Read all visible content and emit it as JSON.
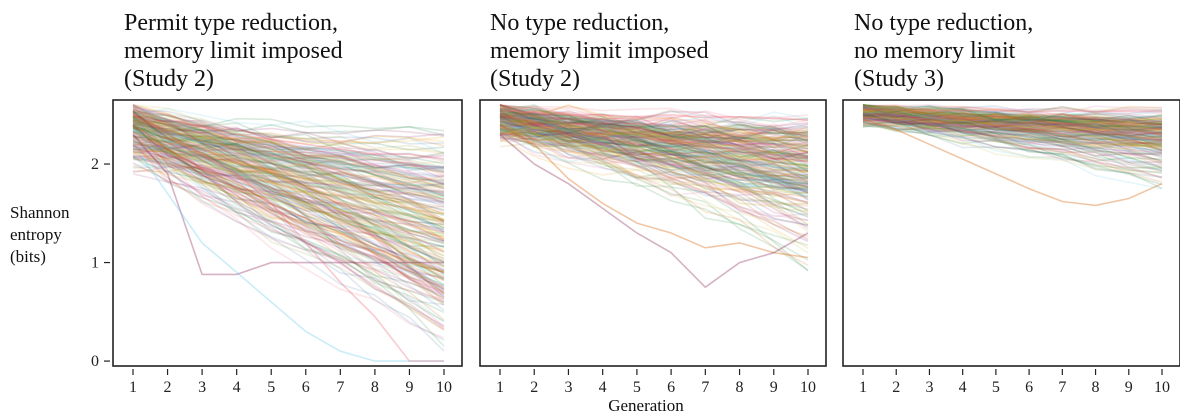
{
  "chart_data": {
    "type": "line",
    "xlabel": "Generation",
    "ylabel_lines": [
      "Shannon",
      "entropy",
      "(bits)"
    ],
    "x_ticks": [
      1,
      2,
      3,
      4,
      5,
      6,
      7,
      8,
      9,
      10
    ],
    "y_ticks": [
      0,
      1,
      2
    ],
    "xlim": [
      0.6,
      10.4
    ],
    "ylim": [
      -0.05,
      2.65
    ],
    "grid": false,
    "legend": "none",
    "palette": [
      "#4477aa",
      "#66ccee",
      "#228833",
      "#ccbb44",
      "#ee6677",
      "#aa3377",
      "#e69f00",
      "#d55e00",
      "#cc79a7",
      "#999933",
      "#882255",
      "#117733"
    ],
    "line_opacity": 0.16,
    "panels": [
      {
        "title_lines": [
          "Permit type reduction,",
          "memory limit imposed",
          "(Study 2)"
        ],
        "start_range": [
          1.9,
          2.58
        ],
        "end_range": [
          0.0,
          2.35
        ],
        "typical_end": 1.25,
        "series_count": 240,
        "example_series": [
          {
            "x": [
              1,
              2,
              3,
              4,
              5,
              6,
              7,
              8,
              9,
              10
            ],
            "y": [
              2.55,
              2.45,
              2.38,
              2.3,
              2.25,
              2.2,
              2.15,
              2.1,
              2.1,
              2.05
            ]
          },
          {
            "x": [
              1,
              2,
              3,
              4,
              5,
              6,
              7,
              8,
              9,
              10
            ],
            "y": [
              2.4,
              2.15,
              1.95,
              1.8,
              1.6,
              1.45,
              1.3,
              1.15,
              1.0,
              0.9
            ]
          },
          {
            "x": [
              1,
              2,
              3,
              4,
              5,
              6,
              7,
              8,
              9,
              10
            ],
            "y": [
              2.3,
              1.9,
              0.88,
              0.88,
              1.0,
              1.0,
              1.0,
              1.0,
              1.0,
              1.0
            ]
          },
          {
            "x": [
              1,
              2,
              3,
              4,
              5,
              6,
              7,
              8,
              9,
              10
            ],
            "y": [
              2.2,
              1.7,
              1.2,
              0.9,
              0.6,
              0.3,
              0.1,
              0.0,
              0.0,
              0.0
            ]
          },
          {
            "x": [
              1,
              2,
              3,
              4,
              5,
              6,
              7,
              8,
              9,
              10
            ],
            "y": [
              2.5,
              2.3,
              2.1,
              1.9,
              1.6,
              1.2,
              0.8,
              0.45,
              0.0,
              0.0
            ]
          }
        ]
      },
      {
        "title_lines": [
          "No type reduction,",
          "memory limit imposed",
          "(Study 2)"
        ],
        "start_range": [
          2.2,
          2.58
        ],
        "end_range": [
          0.9,
          2.5
        ],
        "typical_end": 2.0,
        "series_count": 240,
        "example_series": [
          {
            "x": [
              1,
              2,
              3,
              4,
              5,
              6,
              7,
              8,
              9,
              10
            ],
            "y": [
              2.55,
              2.52,
              2.5,
              2.5,
              2.48,
              2.5,
              2.47,
              2.48,
              2.46,
              2.45
            ]
          },
          {
            "x": [
              1,
              2,
              3,
              4,
              5,
              6,
              7,
              8,
              9,
              10
            ],
            "y": [
              2.4,
              2.2,
              1.85,
              1.6,
              1.4,
              1.3,
              1.15,
              1.2,
              1.1,
              1.05
            ]
          },
          {
            "x": [
              1,
              2,
              3,
              4,
              5,
              6,
              7,
              8,
              9,
              10
            ],
            "y": [
              2.3,
              2.0,
              1.8,
              1.55,
              1.3,
              1.1,
              0.75,
              1.0,
              1.1,
              1.3
            ]
          }
        ]
      },
      {
        "title_lines": [
          "No type reduction,",
          "no memory limit",
          "(Study 3)"
        ],
        "start_range": [
          2.38,
          2.58
        ],
        "end_range": [
          1.75,
          2.55
        ],
        "typical_end": 2.3,
        "series_count": 220,
        "example_series": [
          {
            "x": [
              1,
              2,
              3,
              4,
              5,
              6,
              7,
              8,
              9,
              10
            ],
            "y": [
              2.56,
              2.55,
              2.55,
              2.54,
              2.55,
              2.53,
              2.54,
              2.53,
              2.54,
              2.53
            ]
          },
          {
            "x": [
              1,
              2,
              3,
              4,
              5,
              6,
              7,
              8,
              9,
              10
            ],
            "y": [
              2.45,
              2.35,
              2.2,
              2.05,
              1.9,
              1.75,
              1.62,
              1.58,
              1.65,
              1.8
            ]
          }
        ]
      }
    ]
  }
}
